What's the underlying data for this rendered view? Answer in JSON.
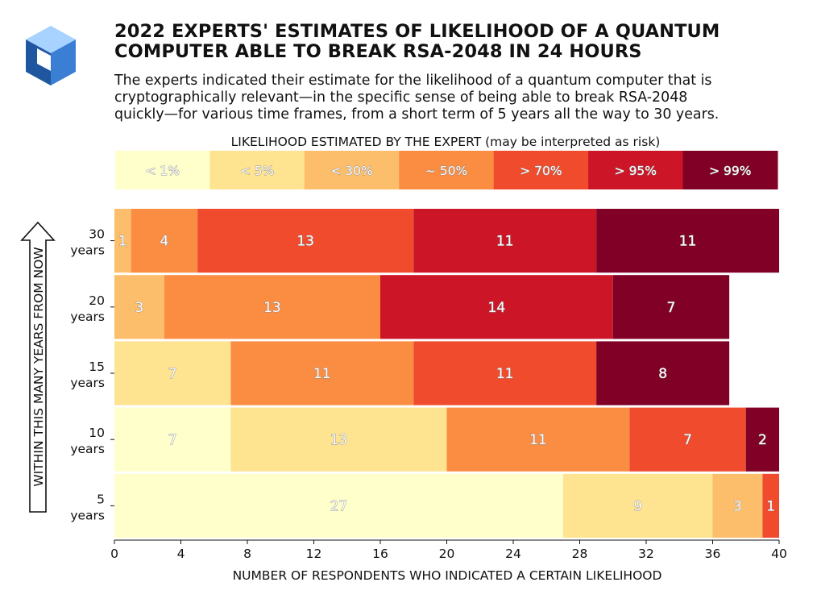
{
  "header": {
    "title_line1": "2022 EXPERTS' ESTIMATES OF LIKELIHOOD OF A QUANTUM",
    "title_line2": "COMPUTER ABLE TO BREAK RSA-2048 IN 24 HOURS",
    "subtitle_line1": "The experts indicated their estimate for the likelihood of a quantum computer that is",
    "subtitle_line2": "cryptographically relevant—in the specific sense of being able to break RSA-2048",
    "subtitle_line3": "quickly—for various time frames, from a short term of 5 years all the way to 30 years."
  },
  "logo": {
    "icon": "cube-logo-icon",
    "colors": [
      "#1e56a0",
      "#3b7fd4",
      "#a8d2ff"
    ]
  },
  "chart_data": {
    "type": "bar",
    "orientation": "horizontal",
    "stacked": true,
    "legend_title": "LIKELIHOOD ESTIMATED BY THE EXPERT (may be interpreted as risk)",
    "legend_placement": "top",
    "xlabel": "NUMBER OF RESPONDENTS WHO INDICATED A CERTAIN LIKELIHOOD",
    "ylabel": "WITHIN THIS MANY YEARS FROM NOW",
    "xlim": [
      0,
      40
    ],
    "xticks": [
      0,
      4,
      8,
      12,
      16,
      20,
      24,
      28,
      32,
      36,
      40
    ],
    "categories": [
      "30 years",
      "20 years",
      "15 years",
      "10 years",
      "5 years"
    ],
    "category_lines": [
      [
        "30",
        "years"
      ],
      [
        "20",
        "years"
      ],
      [
        "15",
        "years"
      ],
      [
        "10",
        "years"
      ],
      [
        "5",
        "years"
      ]
    ],
    "series": [
      {
        "name": "< 1%",
        "color": "#ffffcc",
        "values": [
          0,
          0,
          0,
          7,
          27
        ]
      },
      {
        "name": "< 5%",
        "color": "#fee391",
        "values": [
          0,
          0,
          7,
          13,
          9
        ]
      },
      {
        "name": "< 30%",
        "color": "#fdbe6b",
        "values": [
          1,
          3,
          0,
          0,
          3
        ]
      },
      {
        "name": "~ 50%",
        "color": "#fb8d43",
        "values": [
          4,
          13,
          11,
          11,
          0
        ]
      },
      {
        "name": "> 70%",
        "color": "#f04b2d",
        "values": [
          13,
          0,
          11,
          7,
          1
        ]
      },
      {
        "name": "> 95%",
        "color": "#cc1628",
        "values": [
          11,
          14,
          0,
          0,
          0
        ]
      },
      {
        "name": "> 99%",
        "color": "#800026",
        "values": [
          11,
          7,
          8,
          2,
          0
        ]
      }
    ],
    "grid": false
  }
}
